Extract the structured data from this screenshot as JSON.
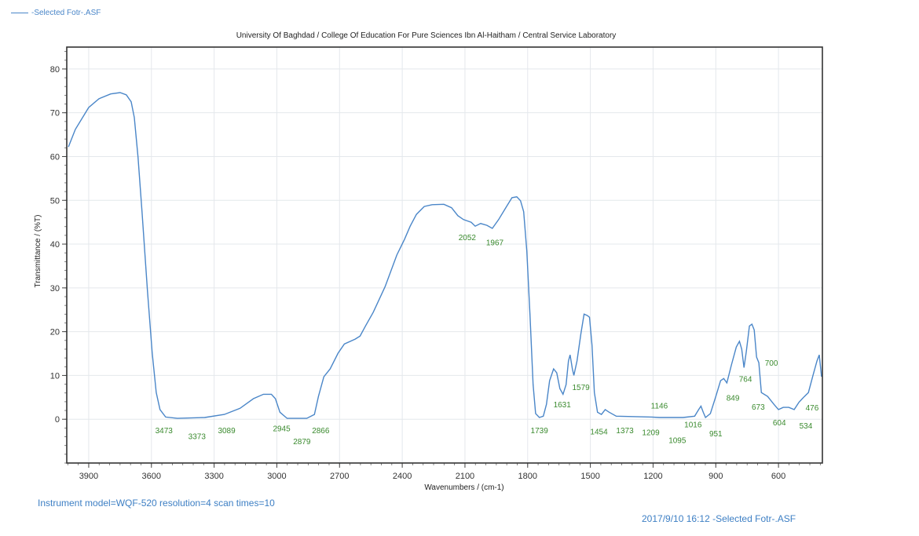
{
  "legend": {
    "label": "-Selected Fotr-.ASF",
    "color": "#4a86c8"
  },
  "footer": {
    "instrument": "Instrument model=WQF-520 resolution=4 scan times=10",
    "timestamp_file": "2017/9/10 16:12 -Selected Fotr-.ASF"
  },
  "chart_data": {
    "type": "line",
    "title": "University Of Baghdad / College Of Education For Pure Sciences Ibn Al-Haitham / Central Service Laboratory",
    "xlabel": "Wavenumbers / (cm-1)",
    "ylabel": "Transmittance / (%T)",
    "xlim": [
      4005,
      390
    ],
    "ylim": [
      -10,
      85
    ],
    "x_reversed": true,
    "grid": true,
    "legend_position": "top-left",
    "x_ticks": [
      3900,
      3600,
      3300,
      3000,
      2700,
      2400,
      2100,
      1800,
      1500,
      1200,
      900,
      600
    ],
    "y_ticks": [
      0,
      10,
      20,
      30,
      40,
      50,
      60,
      70,
      80
    ],
    "line_color": "#4a86c8",
    "label_color": "#3a8a2e",
    "series": [
      {
        "name": "-Selected Fotr-.ASF",
        "points": [
          [
            3997,
            62.2
          ],
          [
            3964,
            66.2
          ],
          [
            3900,
            71.2
          ],
          [
            3851,
            73.2
          ],
          [
            3795,
            74.3
          ],
          [
            3750,
            74.6
          ],
          [
            3720,
            74.1
          ],
          [
            3697,
            72.5
          ],
          [
            3682,
            68.9
          ],
          [
            3664,
            59.9
          ],
          [
            3645,
            47.4
          ],
          [
            3619,
            29.4
          ],
          [
            3596,
            15.1
          ],
          [
            3577,
            6.1
          ],
          [
            3559,
            2.2
          ],
          [
            3532,
            0.5
          ],
          [
            3476,
            0.2
          ],
          [
            3345,
            0.4
          ],
          [
            3251,
            1.1
          ],
          [
            3176,
            2.5
          ],
          [
            3112,
            4.7
          ],
          [
            3064,
            5.7
          ],
          [
            3026,
            5.7
          ],
          [
            3007,
            4.7
          ],
          [
            2985,
            1.6
          ],
          [
            2951,
            0.2
          ],
          [
            2857,
            0.2
          ],
          [
            2820,
            1.1
          ],
          [
            2801,
            5.2
          ],
          [
            2775,
            9.7
          ],
          [
            2745,
            11.5
          ],
          [
            2707,
            15.1
          ],
          [
            2677,
            17.2
          ],
          [
            2625,
            18.3
          ],
          [
            2602,
            19.0
          ],
          [
            2576,
            21.3
          ],
          [
            2539,
            24.4
          ],
          [
            2482,
            30.3
          ],
          [
            2426,
            37.5
          ],
          [
            2389,
            41.1
          ],
          [
            2362,
            44.1
          ],
          [
            2332,
            46.8
          ],
          [
            2295,
            48.6
          ],
          [
            2257,
            49.0
          ],
          [
            2201,
            49.1
          ],
          [
            2164,
            48.3
          ],
          [
            2134,
            46.5
          ],
          [
            2107,
            45.6
          ],
          [
            2070,
            45.0
          ],
          [
            2051,
            44.1
          ],
          [
            2025,
            44.7
          ],
          [
            1995,
            44.3
          ],
          [
            1969,
            43.6
          ],
          [
            1939,
            45.6
          ],
          [
            1901,
            48.6
          ],
          [
            1875,
            50.6
          ],
          [
            1852,
            50.8
          ],
          [
            1834,
            49.9
          ],
          [
            1819,
            47.4
          ],
          [
            1804,
            38.4
          ],
          [
            1789,
            24.0
          ],
          [
            1774,
            7.9
          ],
          [
            1762,
            1.3
          ],
          [
            1744,
            0.4
          ],
          [
            1725,
            0.7
          ],
          [
            1710,
            3.4
          ],
          [
            1695,
            8.8
          ],
          [
            1676,
            11.5
          ],
          [
            1661,
            10.6
          ],
          [
            1646,
            7.0
          ],
          [
            1631,
            5.7
          ],
          [
            1616,
            7.9
          ],
          [
            1605,
            13.3
          ],
          [
            1597,
            14.7
          ],
          [
            1586,
            11.5
          ],
          [
            1579,
            10.0
          ],
          [
            1564,
            13.3
          ],
          [
            1545,
            19.6
          ],
          [
            1530,
            24.0
          ],
          [
            1515,
            23.7
          ],
          [
            1504,
            23.3
          ],
          [
            1492,
            16.9
          ],
          [
            1481,
            6.1
          ],
          [
            1466,
            1.6
          ],
          [
            1447,
            1.1
          ],
          [
            1429,
            2.2
          ],
          [
            1410,
            1.6
          ],
          [
            1376,
            0.7
          ],
          [
            1207,
            0.5
          ],
          [
            1170,
            0.4
          ],
          [
            1057,
            0.4
          ],
          [
            1001,
            0.7
          ],
          [
            982,
            2.2
          ],
          [
            971,
            3.0
          ],
          [
            960,
            1.6
          ],
          [
            949,
            0.4
          ],
          [
            926,
            1.3
          ],
          [
            900,
            5.2
          ],
          [
            877,
            8.8
          ],
          [
            862,
            9.3
          ],
          [
            847,
            8.3
          ],
          [
            825,
            12.4
          ],
          [
            802,
            16.5
          ],
          [
            787,
            17.8
          ],
          [
            776,
            16.0
          ],
          [
            765,
            11.8
          ],
          [
            754,
            15.4
          ],
          [
            739,
            21.3
          ],
          [
            727,
            21.7
          ],
          [
            716,
            20.4
          ],
          [
            705,
            14.2
          ],
          [
            694,
            12.9
          ],
          [
            682,
            6.1
          ],
          [
            652,
            5.2
          ],
          [
            622,
            3.4
          ],
          [
            600,
            2.2
          ],
          [
            577,
            2.7
          ],
          [
            551,
            2.7
          ],
          [
            525,
            2.2
          ],
          [
            502,
            3.9
          ],
          [
            476,
            5.2
          ],
          [
            457,
            6.1
          ],
          [
            435,
            10.0
          ],
          [
            416,
            13.3
          ],
          [
            405,
            14.7
          ],
          [
            394,
            9.7
          ]
        ]
      }
    ],
    "peak_labels": [
      {
        "text": "3473",
        "x": 3540,
        "y": -2.5
      },
      {
        "text": "3373",
        "x": 3382,
        "y": -3.8
      },
      {
        "text": "3089",
        "x": 3240,
        "y": -2.5
      },
      {
        "text": "2945",
        "x": 2977,
        "y": -2.0
      },
      {
        "text": "2879",
        "x": 2880,
        "y": -5.0
      },
      {
        "text": "2866",
        "x": 2790,
        "y": -2.5
      },
      {
        "text": "2052",
        "x": 2089,
        "y": 41.6
      },
      {
        "text": "1967",
        "x": 1957,
        "y": 40.5
      },
      {
        "text": "1739",
        "x": 1744,
        "y": -2.5
      },
      {
        "text": "1631",
        "x": 1635,
        "y": 3.4
      },
      {
        "text": "1579",
        "x": 1545,
        "y": 7.4
      },
      {
        "text": "1454",
        "x": 1459,
        "y": -2.7
      },
      {
        "text": "1373",
        "x": 1335,
        "y": -2.5
      },
      {
        "text": "1209",
        "x": 1211,
        "y": -2.9
      },
      {
        "text": "1146",
        "x": 1170,
        "y": 3.2
      },
      {
        "text": "1095",
        "x": 1084,
        "y": -4.7
      },
      {
        "text": "1016",
        "x": 1009,
        "y": -1.1
      },
      {
        "text": "951",
        "x": 900,
        "y": -3.2
      },
      {
        "text": "849",
        "x": 818,
        "y": 5.0
      },
      {
        "text": "764",
        "x": 758,
        "y": 9.3
      },
      {
        "text": "700",
        "x": 634,
        "y": 12.9
      },
      {
        "text": "673",
        "x": 697,
        "y": 2.9
      },
      {
        "text": "604",
        "x": 596,
        "y": -0.7
      },
      {
        "text": "534",
        "x": 469,
        "y": -1.4
      },
      {
        "text": "476",
        "x": 439,
        "y": 2.7
      }
    ]
  }
}
